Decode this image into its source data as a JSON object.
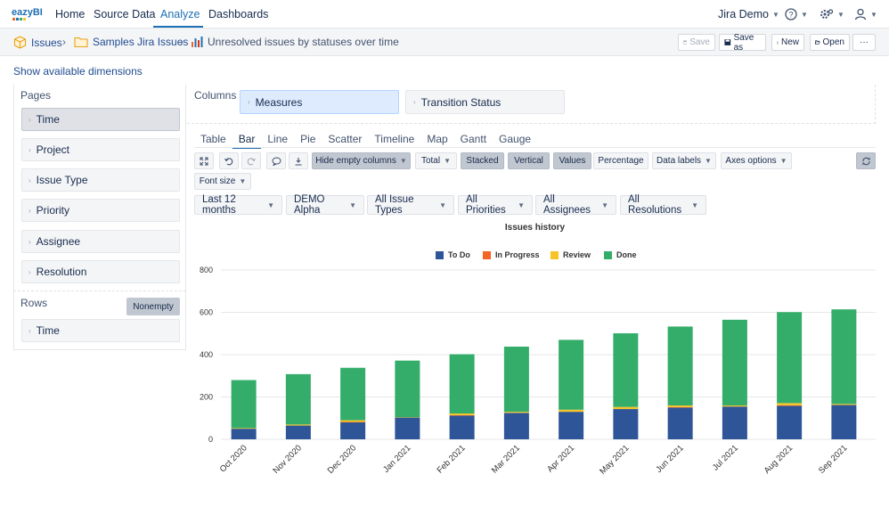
{
  "app": {
    "logo_text": "eazyBI",
    "nav": [
      "Home",
      "Source Data",
      "Analyze",
      "Dashboards"
    ],
    "account": "Jira Demo"
  },
  "breadcrumb": {
    "root": "Issues",
    "folder": "Samples Jira Issues",
    "report": "Unresolved issues by statuses over time"
  },
  "toolbar": {
    "save": "Save",
    "save_as": "Save as",
    "new": "New",
    "open": "Open",
    "more": "···"
  },
  "show_dimensions": "Show available dimensions",
  "pages": {
    "label": "Pages",
    "items": [
      "Time",
      "Project",
      "Issue Type",
      "Priority",
      "Assignee",
      "Resolution"
    ]
  },
  "rows": {
    "label": "Rows",
    "nonempty": "Nonempty",
    "items": [
      "Time"
    ]
  },
  "columns": {
    "label": "Columns",
    "items": [
      "Measures",
      "Transition Status"
    ]
  },
  "chart_tabs": [
    "Table",
    "Bar",
    "Line",
    "Pie",
    "Scatter",
    "Timeline",
    "Map",
    "Gantt",
    "Gauge"
  ],
  "options": {
    "hide_empty": "Hide empty columns",
    "total": "Total",
    "stacked": "Stacked",
    "vertical": "Vertical",
    "values": "Values",
    "percentage": "Percentage",
    "data_labels": "Data labels",
    "axes_options": "Axes options",
    "font_size": "Font size"
  },
  "filters": [
    "Last 12 months",
    "DEMO Alpha",
    "All Issue Types",
    "All Priorities",
    "All Assignees",
    "All Resolutions"
  ],
  "colors": {
    "todo": "#2e5597",
    "in_progress": "#f26522",
    "review": "#f7c325",
    "done": "#34ad6a",
    "accent": "#1f6fb5"
  },
  "chart_data": {
    "type": "bar",
    "stacked": true,
    "title": "Issues history",
    "categories": [
      "Oct 2020",
      "Nov 2020",
      "Dec 2020",
      "Jan 2021",
      "Feb 2021",
      "Mar 2021",
      "Apr 2021",
      "May 2021",
      "Jun 2021",
      "Jul 2021",
      "Aug 2021",
      "Sep 2021"
    ],
    "series": [
      {
        "name": "To Do",
        "values": [
          50,
          65,
          80,
          103,
          112,
          125,
          130,
          143,
          150,
          155,
          158,
          162
        ]
      },
      {
        "name": "In Progress",
        "values": [
          0,
          0,
          2,
          0,
          2,
          0,
          0,
          0,
          2,
          0,
          3,
          0
        ]
      },
      {
        "name": "Review",
        "values": [
          3,
          5,
          8,
          2,
          8,
          5,
          10,
          10,
          8,
          5,
          10,
          5
        ]
      },
      {
        "name": "Done",
        "values": [
          227,
          238,
          248,
          267,
          280,
          308,
          330,
          348,
          373,
          405,
          430,
          447
        ]
      }
    ],
    "yticks": [
      0,
      200,
      400,
      600,
      800
    ],
    "ylim": [
      0,
      800
    ]
  }
}
